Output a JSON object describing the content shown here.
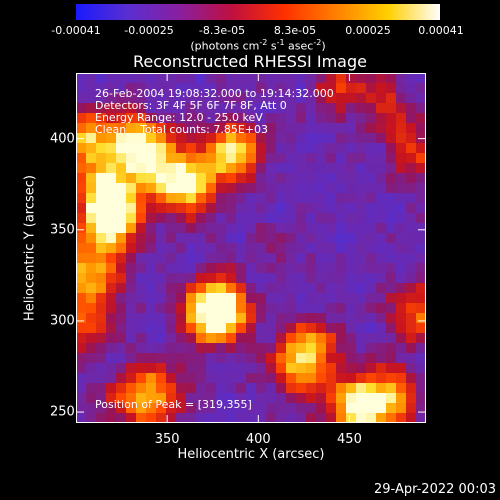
{
  "colorbar": {
    "ticks": [
      "-0.00041",
      "-0.00025",
      "-8.3e-05",
      "8.3e-05",
      "0.00025",
      "0.00041"
    ],
    "units_prefix": "(photons cm",
    "units_exp1": "-2",
    "units_mid": " s",
    "units_exp2": "-1",
    "units_mid2": " asec",
    "units_exp3": "-2",
    "units_suffix": ")",
    "gradient": [
      "#1a1aff",
      "#5a2fd0",
      "#8a1fa0",
      "#c01040",
      "#ff3000",
      "#ff8000",
      "#ffd000",
      "#ffffff"
    ]
  },
  "info": {
    "line1": "26-Feb-2004 19:08:32.000 to 19:14:32.000",
    "line2": "Detectors: 3F 4F 5F 6F 7F 8F, Att 0",
    "line3": "Energy Range: 12.0 - 25.0 keV",
    "line4": "Clean    Total counts: 7.85E+03",
    "peak": "Position of Peak = [319,355]"
  },
  "timestamp": "29-Apr-2022 00:03",
  "chart_data": {
    "type": "heatmap",
    "title": "Reconstructed RHESSI Image",
    "xlabel": "Heliocentric X (arcsec)",
    "ylabel": "Heliocentric Y (arcsec)",
    "xlim": [
      300,
      492
    ],
    "ylim": [
      244,
      436
    ],
    "xticks": [
      350,
      400,
      450
    ],
    "yticks": [
      250,
      300,
      350,
      400
    ],
    "xtick_labels": [
      "350",
      "400",
      "450"
    ],
    "ytick_labels": [
      "250",
      "300",
      "350",
      "400"
    ],
    "peak": [
      319,
      355
    ],
    "blobs": [
      {
        "x": 319,
        "y": 355,
        "intensity": 1.0
      },
      {
        "x": 360,
        "y": 373,
        "intensity": 0.85
      },
      {
        "x": 385,
        "y": 392,
        "intensity": 0.8
      },
      {
        "x": 318,
        "y": 372,
        "intensity": 0.75
      },
      {
        "x": 330,
        "y": 398,
        "intensity": 0.7
      },
      {
        "x": 305,
        "y": 400,
        "intensity": 0.65
      },
      {
        "x": 345,
        "y": 388,
        "intensity": 0.6
      },
      {
        "x": 378,
        "y": 308,
        "intensity": 0.8
      },
      {
        "x": 375,
        "y": 302,
        "intensity": 0.6
      },
      {
        "x": 452,
        "y": 252,
        "intensity": 0.75
      },
      {
        "x": 470,
        "y": 258,
        "intensity": 0.7
      },
      {
        "x": 488,
        "y": 304,
        "intensity": 0.55
      },
      {
        "x": 422,
        "y": 275,
        "intensity": 0.55
      },
      {
        "x": 430,
        "y": 286,
        "intensity": 0.45
      },
      {
        "x": 345,
        "y": 262,
        "intensity": 0.5
      },
      {
        "x": 330,
        "y": 255,
        "intensity": 0.4
      },
      {
        "x": 306,
        "y": 300,
        "intensity": 0.45
      },
      {
        "x": 312,
        "y": 324,
        "intensity": 0.4
      },
      {
        "x": 486,
        "y": 395,
        "intensity": 0.4
      },
      {
        "x": 445,
        "y": 430,
        "intensity": 0.35
      },
      {
        "x": 470,
        "y": 420,
        "intensity": 0.3
      },
      {
        "x": 410,
        "y": 340,
        "intensity": 0.1
      },
      {
        "x": 300,
        "y": 330,
        "intensity": 0.4
      }
    ]
  }
}
